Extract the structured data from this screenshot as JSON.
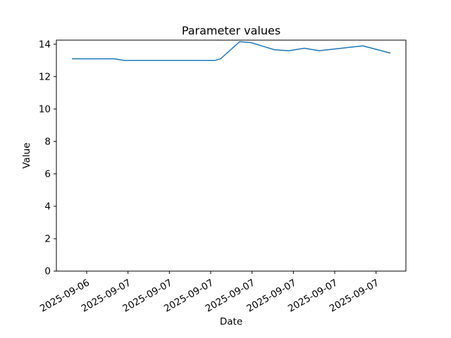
{
  "figure": {
    "background": "#ffffff",
    "axes_color": "#000000"
  },
  "chart_data": {
    "type": "line",
    "title": "Parameter values",
    "xlabel": "Date",
    "ylabel": "Value",
    "grid": false,
    "legend": "none",
    "line_color": "#1f77b4",
    "ylim": [
      0,
      14.25
    ],
    "y_ticks": [
      0,
      2,
      4,
      6,
      8,
      10,
      12,
      14
    ],
    "x_tick_labels": [
      "2025-09-06",
      "2025-09-07",
      "2025-09-07",
      "2025-09-07",
      "2025-09-07",
      "2025-09-07",
      "2025-09-07",
      "2025-09-07"
    ],
    "x_tick_positions": [
      0.0867,
      0.205,
      0.3233,
      0.4415,
      0.5598,
      0.6781,
      0.7964,
      0.9147
    ],
    "x_tick_rotation_deg": -30,
    "series": [
      {
        "name": "parameter-values",
        "color": "#1f77b4",
        "points": [
          {
            "x": 0.0444,
            "y": 13.1
          },
          {
            "x": 0.1653,
            "y": 13.1
          },
          {
            "x": 0.1935,
            "y": 13.0
          },
          {
            "x": 0.4536,
            "y": 13.0
          },
          {
            "x": 0.4698,
            "y": 13.1
          },
          {
            "x": 0.5242,
            "y": 14.15
          },
          {
            "x": 0.5565,
            "y": 14.1
          },
          {
            "x": 0.625,
            "y": 13.65
          },
          {
            "x": 0.6653,
            "y": 13.6
          },
          {
            "x": 0.7097,
            "y": 13.75
          },
          {
            "x": 0.752,
            "y": 13.6
          },
          {
            "x": 0.877,
            "y": 13.9
          },
          {
            "x": 0.9556,
            "y": 13.45
          }
        ]
      }
    ]
  }
}
